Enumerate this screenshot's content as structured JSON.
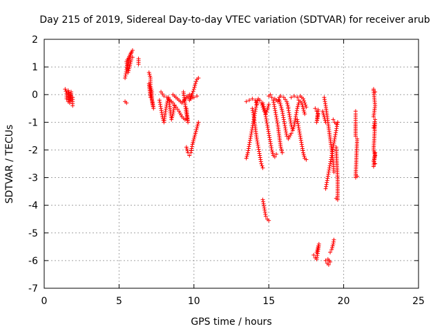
{
  "chart_data": {
    "type": "scatter",
    "title": "Day 215 of 2019, Sidereal Day-to-day VTEC variation (SDTVAR) for receiver arub",
    "xlabel": "GPS time / hours",
    "ylabel": "SDTVAR / TECUs",
    "xlim": [
      0,
      25
    ],
    "ylim": [
      -7,
      2
    ],
    "xticks": [
      0,
      5,
      10,
      15,
      20,
      25
    ],
    "yticks": [
      -7,
      -6,
      -5,
      -4,
      -3,
      -2,
      -1,
      0,
      1,
      2
    ],
    "grid": true,
    "marker": "+",
    "colors": {
      "series": "#ff0000",
      "grid": "#a0a0a0",
      "axis": "#000000"
    },
    "series": [
      {
        "name": "SDTVAR",
        "segments": [
          [
            [
              1.4,
              0.2
            ],
            [
              1.5,
              0.05
            ],
            [
              1.5,
              -0.15
            ],
            [
              1.6,
              -0.25
            ],
            [
              1.6,
              0.15
            ],
            [
              1.7,
              0.0
            ],
            [
              1.7,
              -0.3
            ],
            [
              1.8,
              0.1
            ],
            [
              1.8,
              -0.2
            ],
            [
              1.9,
              -0.1
            ],
            [
              1.9,
              -0.4
            ]
          ],
          [
            [
              5.4,
              -0.25
            ],
            [
              5.5,
              -0.3
            ]
          ],
          [
            [
              5.4,
              0.6
            ],
            [
              5.5,
              0.9
            ],
            [
              5.6,
              1.1
            ],
            [
              5.7,
              1.3
            ],
            [
              5.8,
              1.5
            ],
            [
              5.9,
              1.6
            ],
            [
              5.5,
              1.2
            ],
            [
              5.6,
              0.8
            ],
            [
              5.7,
              1.0
            ],
            [
              5.8,
              1.25
            ],
            [
              5.9,
              1.35
            ]
          ],
          [
            [
              6.3,
              1.3
            ],
            [
              6.3,
              1.1
            ]
          ],
          [
            [
              7.0,
              0.8
            ],
            [
              7.1,
              0.6
            ],
            [
              7.1,
              0.3
            ],
            [
              7.2,
              0.1
            ],
            [
              7.2,
              -0.2
            ],
            [
              7.3,
              -0.5
            ],
            [
              7.0,
              0.4
            ],
            [
              7.1,
              -0.1
            ]
          ],
          [
            [
              7.7,
              -0.2
            ],
            [
              7.8,
              -0.5
            ],
            [
              7.9,
              -0.8
            ],
            [
              8.0,
              -1.0
            ],
            [
              8.1,
              -0.6
            ],
            [
              8.2,
              -0.3
            ],
            [
              8.3,
              -0.1
            ],
            [
              8.4,
              -0.5
            ],
            [
              8.5,
              -0.9
            ],
            [
              8.6,
              -0.7
            ],
            [
              8.7,
              -0.4
            ]
          ],
          [
            [
              7.8,
              0.1
            ],
            [
              8.0,
              -0.05
            ],
            [
              8.2,
              -0.1
            ],
            [
              8.4,
              -0.2
            ],
            [
              8.6,
              -0.3
            ],
            [
              8.8,
              -0.45
            ],
            [
              9.0,
              -0.6
            ],
            [
              9.2,
              -0.8
            ],
            [
              9.4,
              -0.9
            ]
          ],
          [
            [
              8.6,
              0.0
            ],
            [
              8.8,
              -0.1
            ],
            [
              9.0,
              -0.2
            ],
            [
              9.2,
              -0.3
            ],
            [
              9.5,
              -0.1
            ],
            [
              9.7,
              0.0
            ],
            [
              9.9,
              -0.1
            ]
          ],
          [
            [
              9.3,
              0.1
            ],
            [
              9.4,
              -0.3
            ],
            [
              9.5,
              -0.7
            ],
            [
              9.6,
              -1.0
            ],
            [
              9.5,
              -0.5
            ]
          ],
          [
            [
              9.6,
              -0.1
            ],
            [
              9.7,
              -0.2
            ],
            [
              9.9,
              0.05
            ],
            [
              10.0,
              0.2
            ],
            [
              10.1,
              0.4
            ],
            [
              10.2,
              0.55
            ],
            [
              10.3,
              0.6
            ]
          ],
          [
            [
              9.8,
              -0.15
            ],
            [
              10.0,
              -0.1
            ],
            [
              10.2,
              -0.05
            ]
          ],
          [
            [
              9.5,
              -1.9
            ],
            [
              9.6,
              -2.1
            ],
            [
              9.7,
              -2.2
            ],
            [
              9.8,
              -2.1
            ],
            [
              9.9,
              -1.8
            ],
            [
              10.0,
              -1.6
            ],
            [
              10.1,
              -1.4
            ],
            [
              10.2,
              -1.2
            ],
            [
              10.3,
              -1.0
            ]
          ],
          [
            [
              13.5,
              -2.3
            ],
            [
              13.6,
              -2.1
            ],
            [
              13.7,
              -1.8
            ],
            [
              13.8,
              -1.5
            ],
            [
              13.9,
              -1.2
            ],
            [
              14.0,
              -0.9
            ],
            [
              14.1,
              -0.6
            ],
            [
              14.2,
              -0.3
            ],
            [
              14.3,
              -0.15
            ],
            [
              14.4,
              -0.2
            ],
            [
              14.5,
              -0.3
            ],
            [
              14.6,
              -0.45
            ],
            [
              14.7,
              -0.6
            ],
            [
              14.8,
              -0.7
            ],
            [
              14.9,
              -0.55
            ],
            [
              15.0,
              -0.35
            ]
          ],
          [
            [
              13.5,
              -0.25
            ],
            [
              13.7,
              -0.2
            ],
            [
              13.9,
              -0.15
            ],
            [
              14.1,
              -0.2
            ],
            [
              14.2,
              -0.35
            ]
          ],
          [
            [
              13.9,
              -0.5
            ],
            [
              14.0,
              -0.8
            ],
            [
              14.1,
              -1.2
            ],
            [
              14.2,
              -1.6
            ],
            [
              14.3,
              -1.9
            ],
            [
              14.4,
              -2.2
            ],
            [
              14.5,
              -2.5
            ],
            [
              14.6,
              -2.65
            ]
          ],
          [
            [
              14.6,
              -3.8
            ],
            [
              14.7,
              -4.1
            ],
            [
              14.8,
              -4.4
            ],
            [
              14.9,
              -4.5
            ],
            [
              15.0,
              -4.55
            ]
          ],
          [
            [
              14.6,
              -0.3
            ],
            [
              14.7,
              -0.5
            ],
            [
              14.8,
              -0.8
            ],
            [
              14.9,
              -1.1
            ],
            [
              15.0,
              -1.4
            ],
            [
              15.1,
              -1.7
            ],
            [
              15.2,
              -2.0
            ],
            [
              15.3,
              -2.2
            ],
            [
              15.4,
              -2.25
            ],
            [
              15.5,
              -2.15
            ]
          ],
          [
            [
              15.0,
              -0.05
            ],
            [
              15.1,
              0.0
            ],
            [
              15.2,
              -0.1
            ],
            [
              15.4,
              -0.15
            ],
            [
              15.6,
              -0.25
            ],
            [
              15.7,
              -0.1
            ],
            [
              15.8,
              -0.05
            ],
            [
              16.0,
              -0.1
            ],
            [
              16.2,
              -0.25
            ],
            [
              16.3,
              -0.45
            ]
          ],
          [
            [
              15.3,
              -0.2
            ],
            [
              15.4,
              -0.5
            ],
            [
              15.5,
              -0.8
            ],
            [
              15.6,
              -1.1
            ],
            [
              15.7,
              -1.5
            ],
            [
              15.8,
              -1.9
            ],
            [
              15.9,
              -2.1
            ]
          ],
          [
            [
              15.7,
              -0.2
            ],
            [
              15.8,
              -0.4
            ],
            [
              15.9,
              -0.6
            ],
            [
              16.0,
              -0.9
            ],
            [
              16.1,
              -1.2
            ],
            [
              16.2,
              -1.5
            ],
            [
              16.3,
              -1.6
            ],
            [
              16.5,
              -1.4
            ]
          ],
          [
            [
              16.3,
              -0.5
            ],
            [
              16.4,
              -0.8
            ],
            [
              16.5,
              -1.1
            ],
            [
              16.6,
              -1.3
            ],
            [
              16.7,
              -1.1
            ],
            [
              16.8,
              -0.8
            ],
            [
              16.9,
              -0.5
            ],
            [
              17.0,
              -0.3
            ]
          ],
          [
            [
              16.5,
              -0.1
            ],
            [
              16.7,
              -0.05
            ],
            [
              16.9,
              -0.1
            ],
            [
              17.1,
              -0.05
            ],
            [
              17.3,
              -0.15
            ],
            [
              17.4,
              -0.3
            ],
            [
              17.5,
              -0.45
            ]
          ],
          [
            [
              16.9,
              -0.9
            ],
            [
              17.0,
              -1.2
            ],
            [
              17.1,
              -1.5
            ],
            [
              17.2,
              -1.8
            ],
            [
              17.3,
              -2.1
            ],
            [
              17.4,
              -2.3
            ],
            [
              17.5,
              -2.35
            ]
          ],
          [
            [
              17.0,
              -0.2
            ],
            [
              17.2,
              -0.3
            ],
            [
              17.3,
              -0.5
            ],
            [
              17.4,
              -0.7
            ]
          ],
          [
            [
              18.1,
              -0.5
            ],
            [
              18.2,
              -0.6
            ],
            [
              18.3,
              -0.7
            ],
            [
              18.2,
              -1.0
            ],
            [
              18.3,
              -0.55
            ]
          ],
          [
            [
              18.0,
              -5.8
            ],
            [
              18.1,
              -5.9
            ],
            [
              18.2,
              -5.95
            ],
            [
              18.3,
              -5.6
            ],
            [
              18.35,
              -5.4
            ],
            [
              18.2,
              -5.7
            ]
          ],
          [
            [
              18.6,
              -0.6
            ],
            [
              18.7,
              -0.8
            ],
            [
              18.8,
              -1.0
            ]
          ],
          [
            [
              18.7,
              -0.1
            ],
            [
              18.8,
              -0.4
            ],
            [
              18.9,
              -0.8
            ],
            [
              19.0,
              -1.2
            ],
            [
              19.1,
              -1.6
            ],
            [
              19.2,
              -2.0
            ],
            [
              19.3,
              -2.4
            ],
            [
              19.35,
              -2.8
            ]
          ],
          [
            [
              18.8,
              -3.4
            ],
            [
              18.9,
              -3.1
            ],
            [
              19.0,
              -2.8
            ],
            [
              19.1,
              -2.5
            ],
            [
              19.2,
              -2.2
            ],
            [
              19.3,
              -1.9
            ],
            [
              19.4,
              -1.6
            ],
            [
              19.5,
              -1.3
            ],
            [
              19.6,
              -1.0
            ]
          ],
          [
            [
              18.8,
              -6.0
            ],
            [
              18.9,
              -6.1
            ],
            [
              19.0,
              -6.15
            ],
            [
              19.1,
              -6.05
            ],
            [
              18.95,
              -5.95
            ]
          ],
          [
            [
              19.1,
              -5.7
            ],
            [
              19.2,
              -5.6
            ],
            [
              19.3,
              -5.4
            ],
            [
              19.35,
              -5.25
            ]
          ],
          [
            [
              19.3,
              -0.9
            ],
            [
              19.4,
              -1.0
            ],
            [
              19.5,
              -1.05
            ],
            [
              19.6,
              -1.0
            ]
          ],
          [
            [
              19.5,
              -1.9
            ],
            [
              19.6,
              -3.1
            ],
            [
              19.6,
              -3.8
            ],
            [
              19.5,
              -3.75
            ]
          ],
          [
            [
              20.8,
              -0.6
            ],
            [
              20.8,
              -0.7
            ],
            [
              20.8,
              -1.0
            ],
            [
              20.8,
              -1.5
            ],
            [
              20.9,
              -1.6
            ],
            [
              20.8,
              -3.0
            ],
            [
              20.9,
              -2.95
            ]
          ],
          [
            [
              22.0,
              0.2
            ],
            [
              22.1,
              0.1
            ],
            [
              22.0,
              0.15
            ],
            [
              22.1,
              -0.4
            ],
            [
              22.0,
              -0.8
            ],
            [
              22.1,
              -0.9
            ],
            [
              22.0,
              -1.2
            ],
            [
              22.1,
              -1.05
            ],
            [
              22.0,
              -2.0
            ],
            [
              22.1,
              -2.2
            ],
            [
              22.0,
              -2.4
            ],
            [
              22.1,
              -2.5
            ],
            [
              22.0,
              -2.6
            ],
            [
              22.1,
              -2.1
            ]
          ]
        ]
      }
    ]
  }
}
